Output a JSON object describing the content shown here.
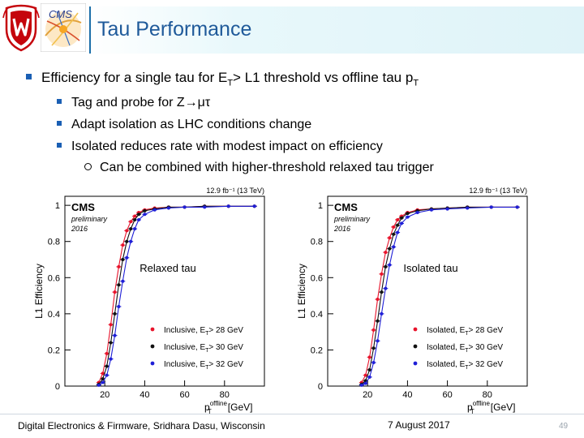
{
  "slide": {
    "title": "Tau Performance",
    "page_number": "49"
  },
  "bullets": {
    "main_text": "Efficiency for a single tau for E",
    "main_sub1": "T",
    "main_mid": "> L1 threshold vs offline tau p",
    "main_sub2": "T",
    "sub1": "Tag and probe for Z→μτ",
    "sub2": "Adapt isolation as LHC conditions change",
    "sub3": "Isolated reduces rate with modest impact on efficiency",
    "subsub1": "Can be combined with higher-threshold relaxed tau trigger"
  },
  "footer": {
    "presenter": "Digital Electronics & Firmware, Sridhara Dasu, Wisconsin",
    "date": "7 August 2017"
  },
  "colors": {
    "title": "#1f5a9a",
    "bullet": "#1a5fb4",
    "series_28": "#e8132b",
    "series_30": "#111111",
    "series_32": "#1f1fd6"
  },
  "chart_data": [
    {
      "type": "line",
      "title": "Relaxed tau",
      "lumi": "12.9 fb⁻¹ (13 TeV)",
      "cms_label": "CMS",
      "prelim_label": "preliminary",
      "year_label": "2016",
      "xlabel": "p",
      "xlabel_sup": "offline",
      "xlabel_sub": "T",
      "xlabel_unit": "[GeV]",
      "ylabel": "L1 Efficiency",
      "xlim": [
        0,
        100
      ],
      "ylim": [
        0,
        1.05
      ],
      "xticks": [
        20,
        40,
        60,
        80
      ],
      "yticks": [
        0,
        0.2,
        0.4,
        0.6,
        0.8,
        1
      ],
      "ytick_labels": [
        "0",
        "0.2",
        "0.4",
        "0.6",
        "0.8",
        "1"
      ],
      "legend_position": "bottom-right",
      "series": [
        {
          "name": "Inclusive, E",
          "threshold": "> 28 GeV",
          "color_key": "series_28",
          "x": [
            17,
            19,
            21,
            23,
            25,
            27,
            29,
            31,
            33,
            35,
            37,
            40,
            45,
            52,
            60,
            70,
            82,
            95
          ],
          "y": [
            0.02,
            0.07,
            0.18,
            0.34,
            0.52,
            0.66,
            0.78,
            0.86,
            0.91,
            0.94,
            0.96,
            0.975,
            0.985,
            0.99,
            0.99,
            0.995,
            0.995,
            0.995
          ]
        },
        {
          "name": "Inclusive, E",
          "threshold": "> 30 GeV",
          "color_key": "series_30",
          "x": [
            17,
            19,
            21,
            23,
            25,
            27,
            29,
            31,
            33,
            35,
            37,
            40,
            45,
            52,
            60,
            70,
            82,
            95
          ],
          "y": [
            0.01,
            0.04,
            0.11,
            0.24,
            0.4,
            0.56,
            0.7,
            0.8,
            0.87,
            0.92,
            0.95,
            0.97,
            0.98,
            0.99,
            0.99,
            0.995,
            0.995,
            0.995
          ]
        },
        {
          "name": "Inclusive, E",
          "threshold": "> 32 GeV",
          "color_key": "series_32",
          "x": [
            17,
            19,
            21,
            23,
            25,
            27,
            29,
            31,
            33,
            35,
            37,
            40,
            45,
            52,
            60,
            70,
            82,
            95
          ],
          "y": [
            0.005,
            0.02,
            0.06,
            0.15,
            0.28,
            0.44,
            0.58,
            0.71,
            0.8,
            0.87,
            0.92,
            0.95,
            0.975,
            0.985,
            0.99,
            0.99,
            0.995,
            0.995
          ]
        }
      ]
    },
    {
      "type": "line",
      "title": "Isolated tau",
      "lumi": "12.9 fb⁻¹ (13 TeV)",
      "cms_label": "CMS",
      "prelim_label": "preliminary",
      "year_label": "2016",
      "xlabel": "p",
      "xlabel_sup": "offline",
      "xlabel_sub": "T",
      "xlabel_unit": "[GeV]",
      "ylabel": "L1 Efficiency",
      "xlim": [
        0,
        100
      ],
      "ylim": [
        0,
        1.05
      ],
      "xticks": [
        20,
        40,
        60,
        80
      ],
      "yticks": [
        0,
        0.2,
        0.4,
        0.6,
        0.8,
        1
      ],
      "ytick_labels": [
        "0",
        "0.2",
        "0.4",
        "0.6",
        "0.8",
        "1"
      ],
      "legend_position": "bottom-right",
      "series": [
        {
          "name": "Isolated, E",
          "threshold": "> 28 GeV",
          "color_key": "series_28",
          "x": [
            17,
            19,
            21,
            23,
            25,
            27,
            29,
            31,
            33,
            35,
            37,
            40,
            45,
            52,
            60,
            70,
            82,
            95
          ],
          "y": [
            0.02,
            0.06,
            0.16,
            0.31,
            0.48,
            0.62,
            0.74,
            0.82,
            0.88,
            0.92,
            0.94,
            0.96,
            0.975,
            0.98,
            0.985,
            0.99,
            0.99,
            0.99
          ]
        },
        {
          "name": "Isolated, E",
          "threshold": "> 30 GeV",
          "color_key": "series_30",
          "x": [
            17,
            19,
            21,
            23,
            25,
            27,
            29,
            31,
            33,
            35,
            37,
            40,
            45,
            52,
            60,
            70,
            82,
            95
          ],
          "y": [
            0.01,
            0.03,
            0.09,
            0.21,
            0.36,
            0.52,
            0.66,
            0.76,
            0.84,
            0.89,
            0.93,
            0.955,
            0.97,
            0.98,
            0.985,
            0.99,
            0.99,
            0.99
          ]
        },
        {
          "name": "Isolated, E",
          "threshold": "> 32 GeV",
          "color_key": "series_32",
          "x": [
            17,
            19,
            21,
            23,
            25,
            27,
            29,
            31,
            33,
            35,
            37,
            40,
            45,
            52,
            60,
            70,
            82,
            95
          ],
          "y": [
            0.005,
            0.015,
            0.05,
            0.13,
            0.25,
            0.4,
            0.54,
            0.67,
            0.77,
            0.85,
            0.9,
            0.935,
            0.96,
            0.975,
            0.98,
            0.985,
            0.99,
            0.99
          ]
        }
      ]
    }
  ]
}
